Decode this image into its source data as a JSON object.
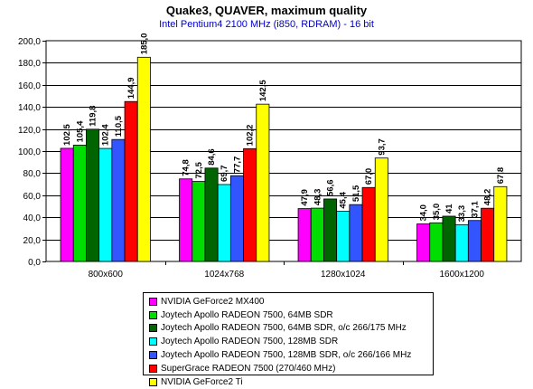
{
  "chart_data": {
    "type": "bar",
    "title": "Quake3, QUAVER, maximum quality",
    "subtitle": "Intel Pentium4 2100 MHz (i850, RDRAM) - 16 bit",
    "categories": [
      "800x600",
      "1024x768",
      "1280x1024",
      "1600x1200"
    ],
    "ylim": [
      0,
      200
    ],
    "yticks": [
      "0,0",
      "20,0",
      "40,0",
      "60,0",
      "80,0",
      "100,0",
      "120,0",
      "140,0",
      "160,0",
      "180,0",
      "200,0"
    ],
    "grid": true,
    "legend_position": "bottom",
    "series": [
      {
        "name": "NVIDIA GeForce2 MX400",
        "color": "#ff00ff",
        "values": [
          102.5,
          74.8,
          47.9,
          34.0
        ],
        "labels": [
          "102,5",
          "74,8",
          "47,9",
          "34,0"
        ]
      },
      {
        "name": "Joytech Apollo RADEON 7500, 64MB SDR",
        "color": "#00dd00",
        "values": [
          105.4,
          72.5,
          48.3,
          35.0
        ],
        "labels": [
          "105,4",
          "72,5",
          "48,3",
          "35,0"
        ]
      },
      {
        "name": "Joytech Apollo RADEON 7500, 64MB SDR, o/c 266/175 MHz",
        "color": "#006400",
        "values": [
          119.8,
          84.6,
          56.6,
          41
        ],
        "labels": [
          "119,8",
          "84,6",
          "56,6",
          "41"
        ]
      },
      {
        "name": "Joytech Apollo RADEON 7500, 128MB SDR",
        "color": "#00ffff",
        "values": [
          102.4,
          69.7,
          45.4,
          33.3
        ],
        "labels": [
          "102,4",
          "69,7",
          "45,4",
          "33,3"
        ]
      },
      {
        "name": "Joytech Apollo RADEON 7500, 128MB SDR, o/c 266/166 MHz",
        "color": "#3355ff",
        "values": [
          110.5,
          77.7,
          51.5,
          37.1
        ],
        "labels": [
          "110,5",
          "77,7",
          "51,5",
          "37,1"
        ]
      },
      {
        "name": "SuperGrace RADEON 7500 (270/460 MHz)",
        "color": "#ff0000",
        "values": [
          144.9,
          102.2,
          67.0,
          48.2
        ],
        "labels": [
          "144,9",
          "102,2",
          "67,0",
          "48,2"
        ]
      },
      {
        "name": "NVIDIA GeForce2 Ti",
        "color": "#ffff00",
        "values": [
          185.0,
          142.5,
          93.7,
          67.8
        ],
        "labels": [
          "185,0",
          "142,5",
          "93,7",
          "67,8"
        ]
      }
    ]
  }
}
